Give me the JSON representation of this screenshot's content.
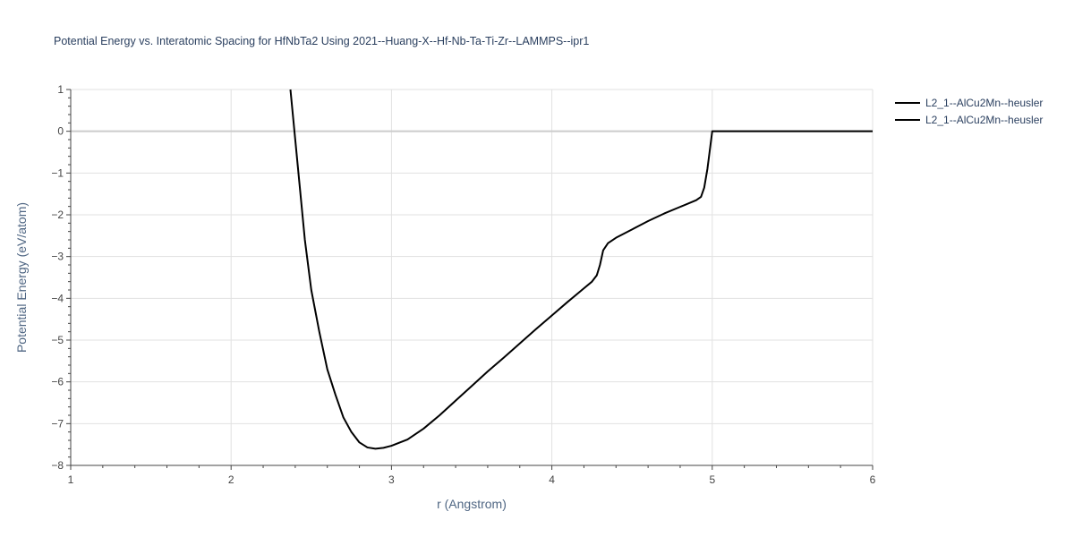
{
  "chart_data": {
    "type": "line",
    "title": "Potential Energy vs. Interatomic Spacing for HfNbTa2 Using 2021--Huang-X--Hf-Nb-Ta-Ti-Zr--LAMMPS--ipr1",
    "xlabel": "r (Angstrom)",
    "ylabel": "Potential Energy (eV/atom)",
    "xlim": [
      1,
      6
    ],
    "ylim": [
      -8,
      1
    ],
    "xticks": [
      "1",
      "2",
      "3",
      "4",
      "5",
      "6"
    ],
    "yticks": [
      "1",
      "0",
      "−1",
      "−2",
      "−3",
      "−4",
      "−5",
      "−6",
      "−7",
      "−8"
    ],
    "grid": true,
    "legend_position": "top-right",
    "series": [
      {
        "name": "L2_1--AlCu2Mn--heusler",
        "color": "#000000",
        "x": [
          2.37,
          2.4,
          2.43,
          2.46,
          2.5,
          2.55,
          2.6,
          2.65,
          2.7,
          2.75,
          2.8,
          2.85,
          2.9,
          2.95,
          3.0,
          3.1,
          3.2,
          3.3,
          3.4,
          3.5,
          3.6,
          3.7,
          3.8,
          3.9,
          4.0,
          4.1,
          4.2,
          4.25,
          4.28,
          4.3,
          4.32,
          4.35,
          4.4,
          4.5,
          4.6,
          4.7,
          4.8,
          4.9,
          4.93,
          4.95,
          4.97,
          4.99,
          5.0,
          5.2,
          5.5,
          6.0
        ],
        "y": [
          1.0,
          -0.2,
          -1.4,
          -2.6,
          -3.8,
          -4.8,
          -5.7,
          -6.3,
          -6.85,
          -7.2,
          -7.45,
          -7.57,
          -7.6,
          -7.58,
          -7.53,
          -7.38,
          -7.12,
          -6.8,
          -6.45,
          -6.1,
          -5.75,
          -5.42,
          -5.08,
          -4.74,
          -4.41,
          -4.08,
          -3.76,
          -3.6,
          -3.45,
          -3.2,
          -2.85,
          -2.68,
          -2.55,
          -2.35,
          -2.15,
          -1.97,
          -1.81,
          -1.65,
          -1.57,
          -1.35,
          -0.9,
          -0.3,
          0.0,
          0.0,
          0.0,
          0.0
        ]
      },
      {
        "name": "L2_1--AlCu2Mn--heusler",
        "color": "#000000",
        "x": [],
        "y": []
      }
    ]
  }
}
